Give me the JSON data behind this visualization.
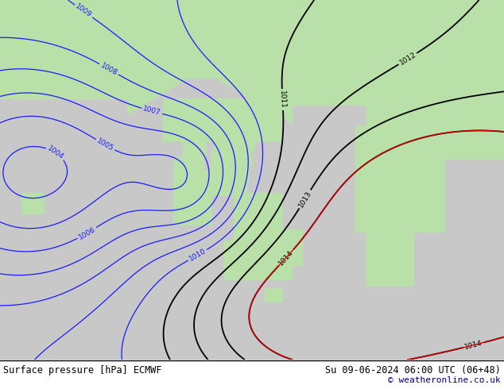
{
  "title_left": "Surface pressure [hPa] ECMWF",
  "title_right": "Su 09-06-2024 06:00 UTC (06+48)",
  "copyright": "© weatheronline.co.uk",
  "land_color": "#b8e0a8",
  "sea_color": "#c8c8c8",
  "isobar_color_blue": "#1a1aff",
  "isobar_color_black": "#000000",
  "isobar_color_red": "#dd0000",
  "bottom_bar_color": "#00008b",
  "figsize": [
    6.34,
    4.9
  ],
  "dpi": 100
}
